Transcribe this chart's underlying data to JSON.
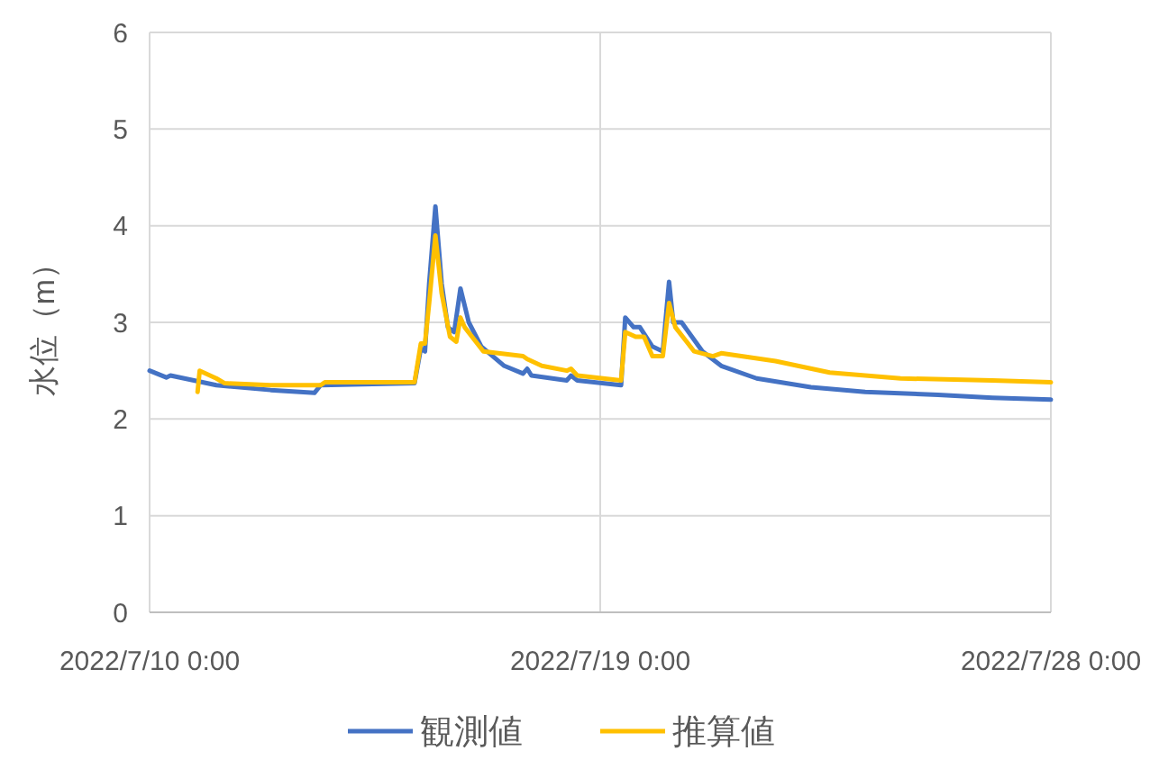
{
  "chart_data": {
    "type": "line",
    "ylabel": "水位（m）",
    "xlim": [
      "2022-07-10T00:00",
      "2022-07-28T00:00"
    ],
    "xticks": [
      {
        "value": "2022-07-10T00:00",
        "label": "2022/7/10 0:00"
      },
      {
        "value": "2022-07-19T00:00",
        "label": "2022/7/19 0:00"
      },
      {
        "value": "2022-07-28T00:00",
        "label": "2022/7/28 0:00"
      }
    ],
    "ylim": [
      0,
      6
    ],
    "yticks": [
      0,
      1,
      2,
      3,
      4,
      5,
      6
    ],
    "grid": true,
    "legend": "bottom",
    "line_style": "solid",
    "marker": "none",
    "series": [
      {
        "name": "観測値",
        "color": "#4472c4",
        "x": [
          "2022-07-10T00:00",
          "2022-07-10T08:00",
          "2022-07-10T10:00",
          "2022-07-11T08:00",
          "2022-07-12T10:00",
          "2022-07-13T07:00",
          "2022-07-13T10:00",
          "2022-07-15T07:00",
          "2022-07-15T10:00",
          "2022-07-15T12:00",
          "2022-07-15T14:00",
          "2022-07-15T17:00",
          "2022-07-15T20:00",
          "2022-07-15T23:00",
          "2022-07-16T02:00",
          "2022-07-16T05:00",
          "2022-07-16T09:00",
          "2022-07-16T15:00",
          "2022-07-17T02:00",
          "2022-07-17T11:00",
          "2022-07-17T13:00",
          "2022-07-17T15:00",
          "2022-07-18T08:00",
          "2022-07-18T10:00",
          "2022-07-18T13:00",
          "2022-07-19T10:00",
          "2022-07-19T12:00",
          "2022-07-19T16:00",
          "2022-07-19T19:00",
          "2022-07-20T01:00",
          "2022-07-20T06:00",
          "2022-07-20T09:00",
          "2022-07-20T11:00",
          "2022-07-20T15:00",
          "2022-07-21T01:00",
          "2022-07-21T10:00",
          "2022-07-22T03:00",
          "2022-07-23T05:00",
          "2022-07-24T07:00",
          "2022-07-25T18:00",
          "2022-07-26T20:00",
          "2022-07-28T00:00"
        ],
        "values": [
          2.5,
          2.43,
          2.45,
          2.35,
          2.3,
          2.27,
          2.35,
          2.37,
          2.73,
          2.7,
          3.4,
          4.2,
          3.4,
          2.95,
          2.9,
          3.35,
          3.0,
          2.75,
          2.55,
          2.47,
          2.52,
          2.45,
          2.4,
          2.45,
          2.4,
          2.35,
          3.05,
          2.95,
          2.95,
          2.75,
          2.7,
          3.42,
          3.0,
          3.0,
          2.7,
          2.55,
          2.42,
          2.33,
          2.28,
          2.25,
          2.22,
          2.2
        ]
      },
      {
        "name": "推算値",
        "color": "#ffc000",
        "x": [
          "2022-07-10T23:00",
          "2022-07-11T00:00",
          "2022-07-11T08:00",
          "2022-07-11T12:00",
          "2022-07-12T10:00",
          "2022-07-13T10:00",
          "2022-07-13T12:00",
          "2022-07-15T07:00",
          "2022-07-15T10:00",
          "2022-07-15T12:00",
          "2022-07-15T14:00",
          "2022-07-15T17:00",
          "2022-07-15T20:00",
          "2022-07-16T00:00",
          "2022-07-16T03:00",
          "2022-07-16T05:00",
          "2022-07-16T07:00",
          "2022-07-16T16:00",
          "2022-07-17T11:00",
          "2022-07-17T13:00",
          "2022-07-17T20:00",
          "2022-07-18T08:00",
          "2022-07-18T10:00",
          "2022-07-18T13:00",
          "2022-07-19T10:00",
          "2022-07-19T12:00",
          "2022-07-19T17:00",
          "2022-07-19T21:00",
          "2022-07-20T01:00",
          "2022-07-20T06:00",
          "2022-07-20T09:00",
          "2022-07-20T12:00",
          "2022-07-20T21:00",
          "2022-07-21T06:00",
          "2022-07-21T10:00",
          "2022-07-22T12:00",
          "2022-07-23T14:00",
          "2022-07-25T00:00",
          "2022-07-26T20:00",
          "2022-07-28T00:00"
        ],
        "values": [
          2.28,
          2.5,
          2.42,
          2.37,
          2.35,
          2.35,
          2.38,
          2.38,
          2.78,
          2.78,
          3.2,
          3.9,
          3.3,
          2.85,
          2.8,
          3.05,
          2.95,
          2.7,
          2.65,
          2.62,
          2.55,
          2.5,
          2.52,
          2.45,
          2.4,
          2.9,
          2.85,
          2.85,
          2.65,
          2.65,
          3.2,
          2.95,
          2.7,
          2.65,
          2.68,
          2.6,
          2.48,
          2.42,
          2.4,
          2.38
        ]
      }
    ]
  }
}
